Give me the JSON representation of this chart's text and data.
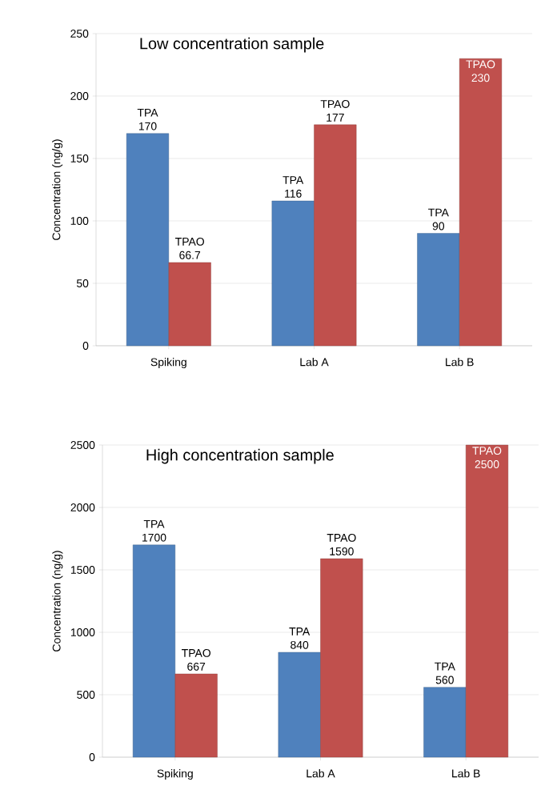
{
  "chart_data": [
    {
      "type": "bar",
      "title": "Low concentration sample",
      "ylabel": "Concentration (ng/g)",
      "categories": [
        "Spiking",
        "Lab A",
        "Lab B"
      ],
      "series": [
        {
          "name": "TPA",
          "color": "#4f81bd",
          "values": [
            170,
            116,
            90
          ]
        },
        {
          "name": "TPAO",
          "color": "#c0504d",
          "values": [
            66.7,
            177,
            230
          ]
        }
      ],
      "ylim": [
        0,
        250
      ],
      "yticks": [
        0,
        50,
        100,
        150,
        200,
        250
      ],
      "grid": "y",
      "data_labels": true
    },
    {
      "type": "bar",
      "title": "High concentration sample",
      "ylabel": "Concentration (ng/g)",
      "categories": [
        "Spiking",
        "Lab A",
        "Lab B"
      ],
      "series": [
        {
          "name": "TPA",
          "color": "#4f81bd",
          "values": [
            1700,
            840,
            560
          ]
        },
        {
          "name": "TPAO",
          "color": "#c0504d",
          "values": [
            667,
            1590,
            2500
          ]
        }
      ],
      "ylim": [
        0,
        2500
      ],
      "yticks": [
        0,
        500,
        1000,
        1500,
        2000,
        2500
      ],
      "grid": "y",
      "data_labels": true
    }
  ]
}
